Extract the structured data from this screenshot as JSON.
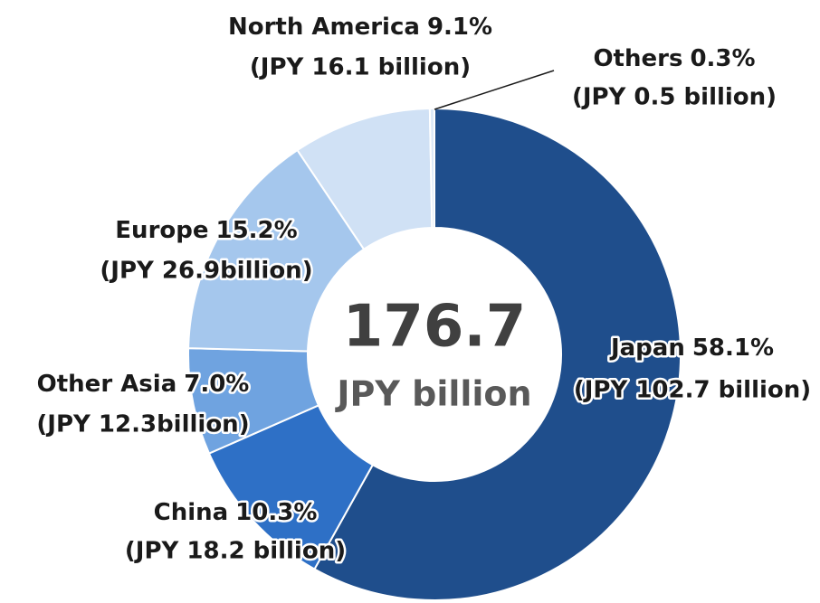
{
  "chart_data": {
    "type": "donut",
    "categories": [
      "Japan",
      "China",
      "Other Asia",
      "Europe",
      "North America",
      "Others"
    ],
    "values": [
      58.1,
      10.3,
      7.0,
      15.2,
      9.1,
      0.3
    ],
    "value_labels": [
      "58.1%",
      "10.3%",
      "7.0%",
      "15.2%",
      "9.1%",
      "0.3%"
    ],
    "amount_labels": [
      "(JPY 102.7 billion)",
      "(JPY 18.2 billion)",
      "(JPY 12.3billion)",
      "(JPY 26.9billion)",
      "(JPY 16.1 billion)",
      "(JPY 0.5 billion)"
    ],
    "colors": [
      "#1f4e8c",
      "#2e70c6",
      "#6fa3e0",
      "#a5c7ed",
      "#d0e1f5",
      "#dde9f7"
    ],
    "center_value": "176.7",
    "center_label": "JPY billion"
  }
}
